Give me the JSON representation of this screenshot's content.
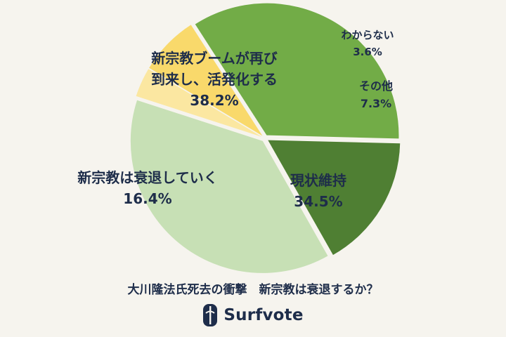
{
  "chart_data": {
    "type": "pie",
    "title": "大川隆法氏死去の衝撃　新宗教は衰退するか？",
    "slices": [
      {
        "label_lines": [
          "わからない"
        ],
        "value": 3.6,
        "value_label": "3.6%",
        "color": "#fbe7a1"
      },
      {
        "label_lines": [
          "その他"
        ],
        "value": 7.3,
        "value_label": "7.3%",
        "color": "#f9d96b"
      },
      {
        "label_lines": [
          "現状維持"
        ],
        "value": 34.5,
        "value_label": "34.5%",
        "color": "#72ac47"
      },
      {
        "label_lines": [
          "新宗教は衰退していく"
        ],
        "value": 16.4,
        "value_label": "16.4%",
        "color": "#4f7f33"
      },
      {
        "label_lines": [
          "新宗教ブームが再び",
          "到来し、活発化する"
        ],
        "value": 38.2,
        "value_label": "38.2%",
        "color": "#c7e0b5"
      }
    ]
  },
  "caption": "大川隆法氏死去の衝撃　新宗教は衰退するか？",
  "brand": {
    "name": "Surfvote",
    "color": "#1e2d4a"
  }
}
